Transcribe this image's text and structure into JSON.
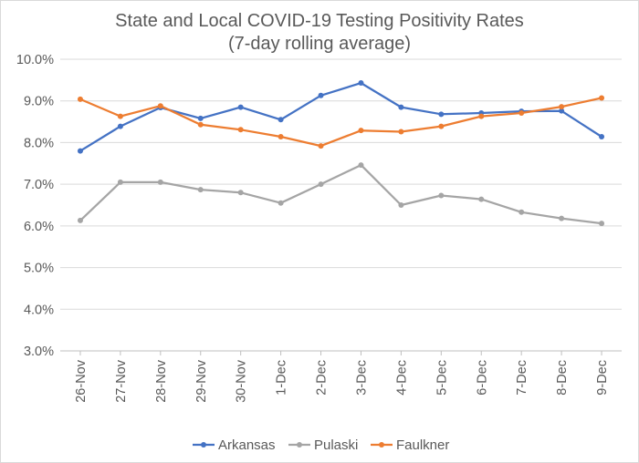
{
  "chart_data": {
    "type": "line",
    "title": [
      "State and Local COVID-19 Testing Positivity Rates",
      "(7-day rolling average)"
    ],
    "xlabel": "",
    "ylabel": "",
    "categories": [
      "26-Nov",
      "27-Nov",
      "28-Nov",
      "29-Nov",
      "30-Nov",
      "1-Dec",
      "2-Dec",
      "3-Dec",
      "4-Dec",
      "5-Dec",
      "6-Dec",
      "7-Dec",
      "8-Dec",
      "9-Dec"
    ],
    "ylim": [
      3.0,
      10.0
    ],
    "yticks": [
      3.0,
      4.0,
      5.0,
      6.0,
      7.0,
      8.0,
      9.0,
      10.0
    ],
    "ytick_labels": [
      "3.0%",
      "4.0%",
      "5.0%",
      "6.0%",
      "7.0%",
      "8.0%",
      "9.0%",
      "10.0%"
    ],
    "grid": true,
    "legend_position": "bottom",
    "series": [
      {
        "name": "Arkansas",
        "color": "#4472c4",
        "values": [
          7.8,
          8.39,
          8.84,
          8.58,
          8.85,
          8.55,
          9.13,
          9.43,
          8.85,
          8.68,
          8.71,
          8.75,
          8.76,
          8.14
        ]
      },
      {
        "name": "Pulaski",
        "color": "#a5a5a5",
        "values": [
          6.13,
          7.05,
          7.05,
          6.87,
          6.8,
          6.55,
          7.0,
          7.46,
          6.5,
          6.73,
          6.64,
          6.33,
          6.18,
          6.06
        ]
      },
      {
        "name": "Faulkner",
        "color": "#ed7d31",
        "values": [
          9.04,
          8.63,
          8.88,
          8.43,
          8.31,
          8.14,
          7.92,
          8.29,
          8.26,
          8.39,
          8.63,
          8.71,
          8.86,
          9.07
        ]
      }
    ]
  }
}
